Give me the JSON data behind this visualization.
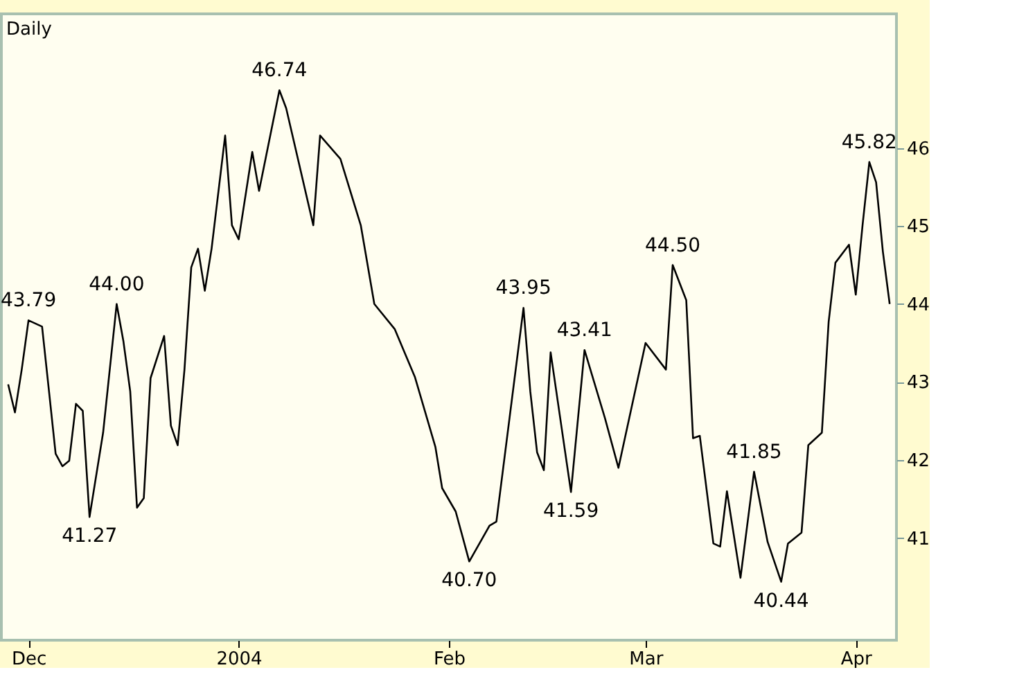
{
  "chart_data": {
    "type": "line",
    "title": "Daily",
    "x": [
      "2003-11-28",
      "2003-11-29",
      "2003-11-30",
      "2003-12-01",
      "2003-12-03",
      "2003-12-04",
      "2003-12-05",
      "2003-12-06",
      "2003-12-07",
      "2003-12-08",
      "2003-12-09",
      "2003-12-10",
      "2003-12-12",
      "2003-12-14",
      "2003-12-15",
      "2003-12-16",
      "2003-12-17",
      "2003-12-18",
      "2003-12-19",
      "2003-12-21",
      "2003-12-22",
      "2003-12-23",
      "2003-12-24",
      "2003-12-25",
      "2003-12-26",
      "2003-12-27",
      "2003-12-28",
      "2003-12-30",
      "2003-12-31",
      "2004-01-01",
      "2004-01-03",
      "2004-01-04",
      "2004-01-07",
      "2004-01-08",
      "2004-01-12",
      "2004-01-13",
      "2004-01-16",
      "2004-01-19",
      "2004-01-21",
      "2004-01-24",
      "2004-01-27",
      "2004-01-30",
      "2004-01-31",
      "2004-02-02",
      "2004-02-04",
      "2004-02-07",
      "2004-02-08",
      "2004-02-10",
      "2004-02-12",
      "2004-02-13",
      "2004-02-14",
      "2004-02-15",
      "2004-02-16",
      "2004-02-19",
      "2004-02-21",
      "2004-02-24",
      "2004-02-26",
      "2004-03-01",
      "2004-03-04",
      "2004-03-05",
      "2004-03-07",
      "2004-03-08",
      "2004-03-09",
      "2004-03-11",
      "2004-03-12",
      "2004-03-13",
      "2004-03-15",
      "2004-03-17",
      "2004-03-19",
      "2004-03-21",
      "2004-03-22",
      "2004-03-24",
      "2004-03-25",
      "2004-03-27",
      "2004-03-28",
      "2004-03-29",
      "2004-03-31",
      "2004-04-01",
      "2004-04-02",
      "2004-04-03",
      "2004-04-04",
      "2004-04-05",
      "2004-04-06"
    ],
    "series": [
      {
        "color": "#000000",
        "values": [
          42.97,
          42.61,
          43.16,
          43.79,
          43.71,
          42.9,
          42.08,
          41.92,
          41.99,
          42.72,
          42.63,
          41.27,
          42.35,
          44.0,
          43.52,
          42.88,
          41.39,
          41.51,
          43.05,
          43.59,
          42.44,
          42.19,
          43.16,
          44.47,
          44.71,
          44.17,
          44.71,
          46.16,
          45.01,
          44.83,
          45.95,
          45.45,
          46.74,
          46.51,
          45.01,
          46.16,
          45.86,
          45.01,
          44.0,
          43.68,
          43.06,
          42.17,
          41.64,
          41.34,
          40.7,
          41.16,
          41.21,
          42.58,
          43.95,
          42.88,
          42.1,
          41.87,
          43.38,
          41.59,
          43.41,
          42.54,
          41.9,
          43.5,
          43.16,
          44.5,
          44.05,
          42.28,
          42.31,
          40.93,
          40.89,
          41.6,
          40.49,
          41.85,
          40.95,
          40.44,
          40.93,
          41.07,
          42.19,
          42.35,
          43.77,
          44.53,
          44.76,
          44.12,
          45.01,
          45.82,
          45.56,
          44.67,
          44.0
        ]
      }
    ],
    "xlim": [
      "2003-11-27",
      "2004-04-07"
    ],
    "xticks": [
      {
        "value": "2003-12-01",
        "label": "Dec"
      },
      {
        "value": "2004-01-01",
        "label": "2004"
      },
      {
        "value": "2004-02-01",
        "label": "Feb"
      },
      {
        "value": "2004-03-01",
        "label": "Mar"
      },
      {
        "value": "2004-04-01",
        "label": "Apr"
      }
    ],
    "ylim": [
      39.69,
      47.72
    ],
    "yticks": [
      41,
      42,
      43,
      44,
      45,
      46
    ],
    "grid": false,
    "marker": "none",
    "line_style": "solid",
    "annotations": [
      {
        "text": "43.79",
        "x": "2003-12-01",
        "y": 43.79
      },
      {
        "text": "41.27",
        "x": "2003-12-10",
        "y": 41.27
      },
      {
        "text": "44.00",
        "x": "2003-12-14",
        "y": 44.0
      },
      {
        "text": "46.74",
        "x": "2004-01-07",
        "y": 46.74
      },
      {
        "text": "40.70",
        "x": "2004-02-04",
        "y": 40.7
      },
      {
        "text": "43.95",
        "x": "2004-02-12",
        "y": 43.95
      },
      {
        "text": "41.59",
        "x": "2004-02-19",
        "y": 41.59
      },
      {
        "text": "43.41",
        "x": "2004-02-21",
        "y": 43.41
      },
      {
        "text": "44.50",
        "x": "2004-03-05",
        "y": 44.5
      },
      {
        "text": "41.85",
        "x": "2004-03-17",
        "y": 41.85
      },
      {
        "text": "40.44",
        "x": "2004-03-21",
        "y": 40.44
      },
      {
        "text": "45.82",
        "x": "2004-04-03",
        "y": 45.82
      }
    ]
  }
}
